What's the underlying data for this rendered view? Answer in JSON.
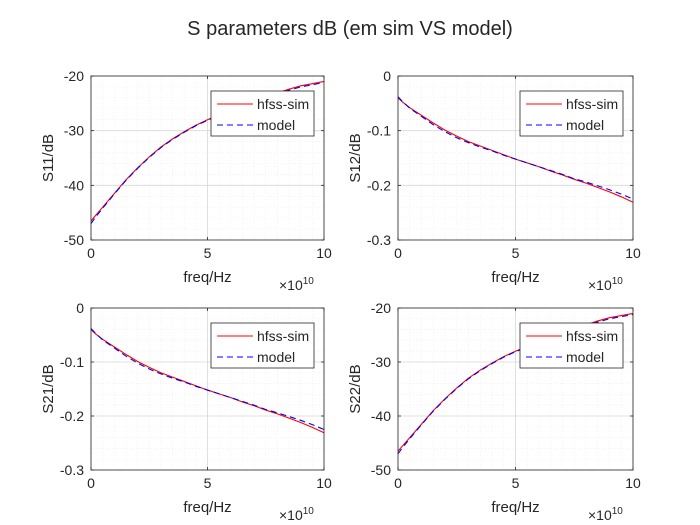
{
  "figure": {
    "title": "S parameters dB (em sim VS model)",
    "colors": {
      "hfss": "#ff0000",
      "model": "#0000ff",
      "axis": "#262626",
      "grid": "#d8d8d8",
      "minor_grid": "#ececec"
    }
  },
  "chart_data": [
    {
      "type": "line",
      "title": "",
      "xlabel": "freq/Hz",
      "ylabel": "S11/dB",
      "x_exponent_base": "×10",
      "x_exponent": "10",
      "xlim": [
        0,
        10
      ],
      "ylim": [
        -50,
        -20
      ],
      "xticks": [
        0,
        5,
        10
      ],
      "yticks": [
        -50,
        -40,
        -30,
        -20
      ],
      "grid": true,
      "minor_grid": true,
      "legend": "top-right",
      "x": [
        0,
        0.2,
        0.5,
        1,
        1.5,
        2,
        2.5,
        3,
        3.5,
        4,
        4.5,
        5,
        5.5,
        6,
        6.5,
        7,
        7.5,
        8,
        8.5,
        9,
        9.5,
        10
      ],
      "series": [
        {
          "name": "hfss-sim",
          "style": "solid",
          "values": [
            -46.5,
            -45.5,
            -44.0,
            -41.5,
            -39.0,
            -36.8,
            -34.8,
            -33.0,
            -31.5,
            -30.2,
            -29.0,
            -28.0,
            -27.1,
            -26.2,
            -25.4,
            -24.6,
            -23.8,
            -23.1,
            -22.4,
            -21.8,
            -21.4,
            -21.0
          ]
        },
        {
          "name": "model",
          "style": "dashed",
          "values": [
            -47.0,
            -45.8,
            -44.2,
            -41.6,
            -39.1,
            -36.9,
            -34.9,
            -33.1,
            -31.6,
            -30.3,
            -29.1,
            -28.1,
            -27.2,
            -26.3,
            -25.5,
            -24.7,
            -23.9,
            -23.2,
            -22.6,
            -22.0,
            -21.6,
            -21.2
          ]
        }
      ]
    },
    {
      "type": "line",
      "title": "",
      "xlabel": "freq/Hz",
      "ylabel": "S12/dB",
      "x_exponent_base": "×10",
      "x_exponent": "10",
      "xlim": [
        0,
        10
      ],
      "ylim": [
        -0.3,
        0
      ],
      "xticks": [
        0,
        5,
        10
      ],
      "yticks": [
        -0.3,
        -0.2,
        -0.1,
        0
      ],
      "grid": true,
      "minor_grid": true,
      "legend": "top-right",
      "x": [
        0,
        0.2,
        0.5,
        1,
        1.5,
        2,
        2.5,
        3,
        3.5,
        4,
        4.5,
        5,
        5.5,
        6,
        6.5,
        7,
        7.5,
        8,
        8.5,
        9,
        9.5,
        10
      ],
      "series": [
        {
          "name": "hfss-sim",
          "style": "solid",
          "values": [
            -0.04,
            -0.048,
            -0.058,
            -0.072,
            -0.086,
            -0.099,
            -0.11,
            -0.12,
            -0.128,
            -0.136,
            -0.144,
            -0.152,
            -0.159,
            -0.166,
            -0.174,
            -0.181,
            -0.189,
            -0.196,
            -0.204,
            -0.212,
            -0.221,
            -0.231
          ]
        },
        {
          "name": "model",
          "style": "dashed",
          "values": [
            -0.038,
            -0.047,
            -0.059,
            -0.074,
            -0.089,
            -0.102,
            -0.113,
            -0.122,
            -0.13,
            -0.137,
            -0.145,
            -0.152,
            -0.159,
            -0.166,
            -0.173,
            -0.18,
            -0.188,
            -0.194,
            -0.201,
            -0.208,
            -0.216,
            -0.225
          ]
        }
      ]
    },
    {
      "type": "line",
      "title": "",
      "xlabel": "freq/Hz",
      "ylabel": "S21/dB",
      "x_exponent_base": "×10",
      "x_exponent": "10",
      "xlim": [
        0,
        10
      ],
      "ylim": [
        -0.3,
        0
      ],
      "xticks": [
        0,
        5,
        10
      ],
      "yticks": [
        -0.3,
        -0.2,
        -0.1,
        0
      ],
      "grid": true,
      "minor_grid": true,
      "legend": "top-right",
      "x": [
        0,
        0.2,
        0.5,
        1,
        1.5,
        2,
        2.5,
        3,
        3.5,
        4,
        4.5,
        5,
        5.5,
        6,
        6.5,
        7,
        7.5,
        8,
        8.5,
        9,
        9.5,
        10
      ],
      "series": [
        {
          "name": "hfss-sim",
          "style": "solid",
          "values": [
            -0.04,
            -0.048,
            -0.058,
            -0.072,
            -0.086,
            -0.099,
            -0.11,
            -0.12,
            -0.128,
            -0.136,
            -0.144,
            -0.152,
            -0.159,
            -0.166,
            -0.174,
            -0.181,
            -0.189,
            -0.196,
            -0.204,
            -0.212,
            -0.221,
            -0.231
          ]
        },
        {
          "name": "model",
          "style": "dashed",
          "values": [
            -0.038,
            -0.047,
            -0.059,
            -0.074,
            -0.089,
            -0.102,
            -0.113,
            -0.122,
            -0.13,
            -0.137,
            -0.145,
            -0.152,
            -0.159,
            -0.166,
            -0.173,
            -0.18,
            -0.188,
            -0.194,
            -0.201,
            -0.208,
            -0.216,
            -0.225
          ]
        }
      ]
    },
    {
      "type": "line",
      "title": "",
      "xlabel": "freq/Hz",
      "ylabel": "S22/dB",
      "x_exponent_base": "×10",
      "x_exponent": "10",
      "xlim": [
        0,
        10
      ],
      "ylim": [
        -50,
        -20
      ],
      "xticks": [
        0,
        5,
        10
      ],
      "yticks": [
        -50,
        -40,
        -30,
        -20
      ],
      "grid": true,
      "minor_grid": true,
      "legend": "top-right",
      "x": [
        0,
        0.2,
        0.5,
        1,
        1.5,
        2,
        2.5,
        3,
        3.5,
        4,
        4.5,
        5,
        5.5,
        6,
        6.5,
        7,
        7.5,
        8,
        8.5,
        9,
        9.5,
        10
      ],
      "series": [
        {
          "name": "hfss-sim",
          "style": "solid",
          "values": [
            -46.5,
            -45.5,
            -44.0,
            -41.5,
            -39.0,
            -36.8,
            -34.8,
            -33.0,
            -31.5,
            -30.2,
            -29.0,
            -28.0,
            -27.1,
            -26.2,
            -25.4,
            -24.6,
            -23.8,
            -23.1,
            -22.4,
            -21.8,
            -21.4,
            -21.0
          ]
        },
        {
          "name": "model",
          "style": "dashed",
          "values": [
            -47.0,
            -45.8,
            -44.2,
            -41.6,
            -39.1,
            -36.9,
            -34.9,
            -33.1,
            -31.6,
            -30.3,
            -29.1,
            -28.1,
            -27.2,
            -26.3,
            -25.5,
            -24.7,
            -23.9,
            -23.2,
            -22.6,
            -22.0,
            -21.6,
            -21.2
          ]
        }
      ]
    }
  ]
}
